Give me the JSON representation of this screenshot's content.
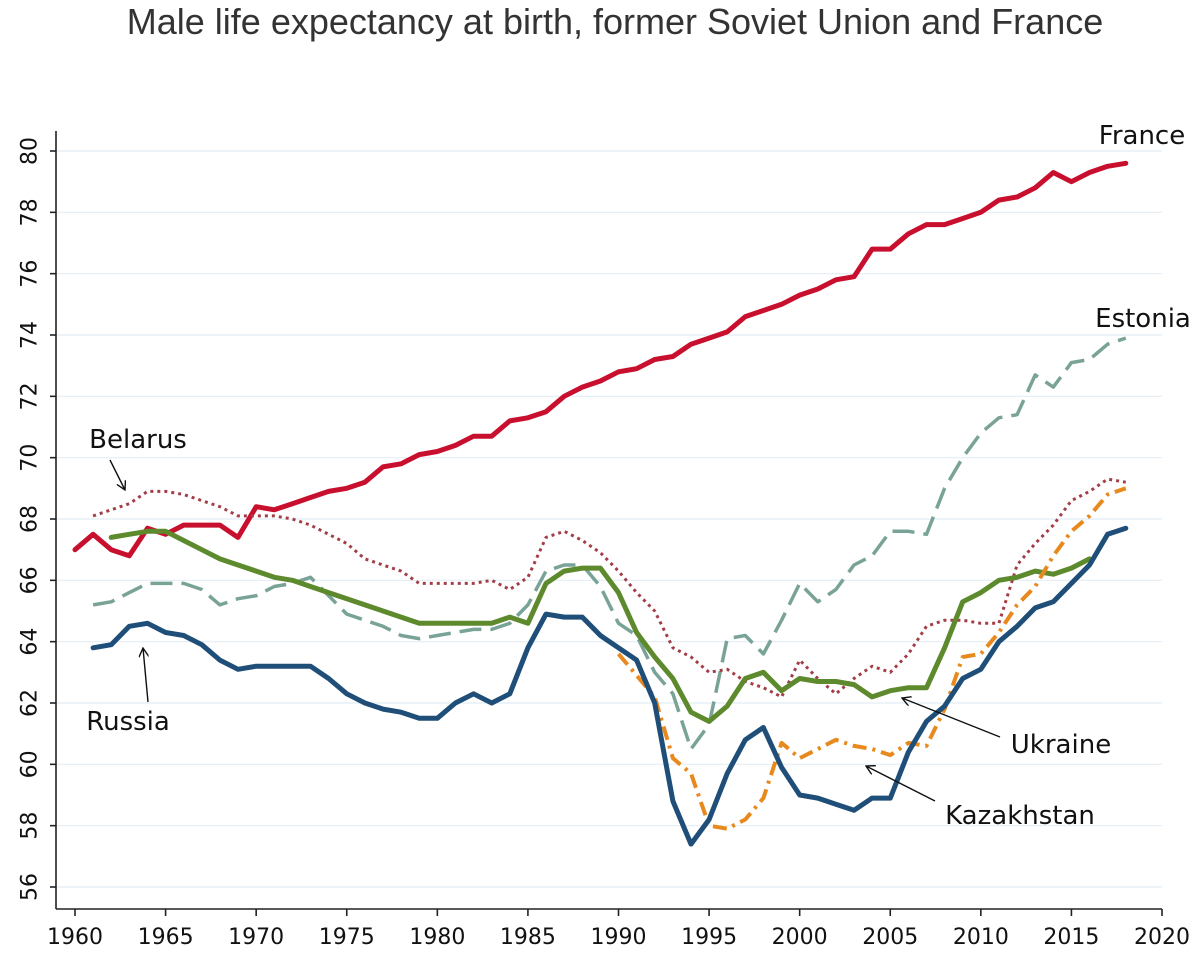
{
  "chart_data": {
    "type": "line",
    "title": "Male life expectancy at birth, former Soviet Union and France",
    "xlabel": "",
    "ylabel": "",
    "xlim": [
      1960,
      2020
    ],
    "ylim": [
      56,
      80
    ],
    "x_ticks": [
      1960,
      1965,
      1970,
      1975,
      1980,
      1985,
      1990,
      1995,
      2000,
      2005,
      2010,
      2015,
      2020
    ],
    "y_ticks": [
      56,
      58,
      60,
      62,
      64,
      66,
      68,
      70,
      72,
      74,
      76,
      78,
      80
    ],
    "grid": true,
    "legend": "direct labels",
    "series": [
      {
        "name": "France",
        "color": "#c8102e",
        "dash": "solid",
        "x": [
          1960,
          1961,
          1962,
          1963,
          1964,
          1965,
          1966,
          1967,
          1968,
          1969,
          1970,
          1971,
          1972,
          1973,
          1974,
          1975,
          1976,
          1977,
          1978,
          1979,
          1980,
          1981,
          1982,
          1983,
          1984,
          1985,
          1986,
          1987,
          1988,
          1989,
          1990,
          1991,
          1992,
          1993,
          1994,
          1995,
          1996,
          1997,
          1998,
          1999,
          2000,
          2001,
          2002,
          2003,
          2004,
          2005,
          2006,
          2007,
          2008,
          2009,
          2010,
          2011,
          2012,
          2013,
          2014,
          2015,
          2016,
          2017,
          2018
        ],
        "values": [
          67.0,
          67.5,
          67.0,
          66.8,
          67.7,
          67.5,
          67.8,
          67.8,
          67.8,
          67.4,
          68.4,
          68.3,
          68.5,
          68.7,
          68.9,
          69.0,
          69.2,
          69.7,
          69.8,
          70.1,
          70.2,
          70.4,
          70.7,
          70.7,
          71.2,
          71.3,
          71.5,
          72.0,
          72.3,
          72.5,
          72.8,
          72.9,
          73.2,
          73.3,
          73.7,
          73.9,
          74.1,
          74.6,
          74.8,
          75.0,
          75.3,
          75.5,
          75.8,
          75.9,
          76.8,
          76.8,
          77.3,
          77.6,
          77.6,
          77.8,
          78.0,
          78.4,
          78.5,
          78.8,
          79.3,
          79.0,
          79.3,
          79.5,
          79.6
        ]
      },
      {
        "name": "Estonia",
        "color": "#7aa398",
        "dash": "long-dash",
        "x": [
          1961,
          1962,
          1963,
          1964,
          1965,
          1966,
          1967,
          1968,
          1969,
          1970,
          1971,
          1972,
          1973,
          1974,
          1975,
          1976,
          1977,
          1978,
          1979,
          1980,
          1981,
          1982,
          1983,
          1984,
          1985,
          1986,
          1987,
          1988,
          1989,
          1990,
          1991,
          1992,
          1993,
          1994,
          1995,
          1996,
          1997,
          1998,
          1999,
          2000,
          2001,
          2002,
          2003,
          2004,
          2005,
          2006,
          2007,
          2008,
          2009,
          2010,
          2011,
          2012,
          2013,
          2014,
          2015,
          2016,
          2017,
          2018
        ],
        "values": [
          65.2,
          65.3,
          65.6,
          65.9,
          65.9,
          65.9,
          65.7,
          65.2,
          65.4,
          65.5,
          65.8,
          65.9,
          66.1,
          65.5,
          64.9,
          64.7,
          64.5,
          64.2,
          64.1,
          64.2,
          64.3,
          64.4,
          64.4,
          64.6,
          65.2,
          66.3,
          66.5,
          66.5,
          65.8,
          64.6,
          64.2,
          63.0,
          62.3,
          60.5,
          61.3,
          64.1,
          64.2,
          63.6,
          64.7,
          65.9,
          65.3,
          65.7,
          66.5,
          66.8,
          67.6,
          67.6,
          67.5,
          69.0,
          70.0,
          70.8,
          71.3,
          71.4,
          72.7,
          72.3,
          73.1,
          73.2,
          73.7,
          73.9
        ]
      },
      {
        "name": "Belarus",
        "color": "#a33e48",
        "dash": "dotted",
        "x": [
          1961,
          1962,
          1963,
          1964,
          1965,
          1966,
          1967,
          1968,
          1969,
          1970,
          1971,
          1972,
          1973,
          1974,
          1975,
          1976,
          1977,
          1978,
          1979,
          1980,
          1981,
          1982,
          1983,
          1984,
          1985,
          1986,
          1987,
          1988,
          1989,
          1990,
          1991,
          1992,
          1993,
          1994,
          1995,
          1996,
          1997,
          1998,
          1999,
          2000,
          2001,
          2002,
          2003,
          2004,
          2005,
          2006,
          2007,
          2008,
          2009,
          2010,
          2011,
          2012,
          2013,
          2014,
          2015,
          2016,
          2017,
          2018
        ],
        "values": [
          68.1,
          68.3,
          68.5,
          68.9,
          68.9,
          68.8,
          68.6,
          68.4,
          68.1,
          68.1,
          68.1,
          68.0,
          67.8,
          67.5,
          67.2,
          66.7,
          66.5,
          66.3,
          65.9,
          65.9,
          65.9,
          65.9,
          66.0,
          65.7,
          66.1,
          67.4,
          67.6,
          67.3,
          66.9,
          66.3,
          65.6,
          65.0,
          63.8,
          63.5,
          63.0,
          63.1,
          62.7,
          62.5,
          62.2,
          63.4,
          62.8,
          62.3,
          62.8,
          63.2,
          63.0,
          63.6,
          64.5,
          64.7,
          64.7,
          64.6,
          64.6,
          66.5,
          67.2,
          67.8,
          68.6,
          68.9,
          69.3,
          69.2
        ]
      },
      {
        "name": "Ukraine",
        "color": "#5e8a2e",
        "dash": "solid",
        "x": [
          1962,
          1963,
          1964,
          1965,
          1966,
          1967,
          1968,
          1969,
          1970,
          1971,
          1972,
          1973,
          1974,
          1975,
          1976,
          1977,
          1978,
          1979,
          1980,
          1981,
          1982,
          1983,
          1984,
          1985,
          1986,
          1987,
          1988,
          1989,
          1990,
          1991,
          1992,
          1993,
          1994,
          1995,
          1996,
          1997,
          1998,
          1999,
          2000,
          2001,
          2002,
          2003,
          2004,
          2005,
          2006,
          2007,
          2008,
          2009,
          2010,
          2011,
          2012,
          2013,
          2014,
          2015,
          2016
        ],
        "values": [
          67.4,
          67.5,
          67.6,
          67.6,
          67.3,
          67.0,
          66.7,
          66.5,
          66.3,
          66.1,
          66.0,
          65.8,
          65.6,
          65.4,
          65.2,
          65.0,
          64.8,
          64.6,
          64.6,
          64.6,
          64.6,
          64.6,
          64.8,
          64.6,
          65.9,
          66.3,
          66.4,
          66.4,
          65.6,
          64.3,
          63.5,
          62.8,
          61.7,
          61.4,
          61.9,
          62.8,
          63.0,
          62.4,
          62.8,
          62.7,
          62.7,
          62.6,
          62.2,
          62.4,
          62.5,
          62.5,
          63.8,
          65.3,
          65.6,
          66.0,
          66.1,
          66.3,
          66.2,
          66.4,
          66.7
        ]
      },
      {
        "name": "Kazakhstan",
        "color": "#e8891e",
        "dash": "dash-dot",
        "x": [
          1990,
          1991,
          1992,
          1993,
          1994,
          1995,
          1996,
          1997,
          1998,
          1999,
          2000,
          2001,
          2002,
          2003,
          2004,
          2005,
          2006,
          2007,
          2008,
          2009,
          2010,
          2011,
          2012,
          2013,
          2014,
          2015,
          2016,
          2017,
          2018
        ],
        "values": [
          63.6,
          62.9,
          62.2,
          60.2,
          59.7,
          58.0,
          57.9,
          58.2,
          58.9,
          60.7,
          60.2,
          60.5,
          60.8,
          60.6,
          60.5,
          60.3,
          60.7,
          60.6,
          61.8,
          63.5,
          63.6,
          64.3,
          65.2,
          65.8,
          66.8,
          67.6,
          68.1,
          68.8,
          69.0
        ]
      },
      {
        "name": "Russia",
        "color": "#1f4e79",
        "dash": "solid",
        "x": [
          1961,
          1962,
          1963,
          1964,
          1965,
          1966,
          1967,
          1968,
          1969,
          1970,
          1971,
          1972,
          1973,
          1974,
          1975,
          1976,
          1977,
          1978,
          1979,
          1980,
          1981,
          1982,
          1983,
          1984,
          1985,
          1986,
          1987,
          1988,
          1989,
          1990,
          1991,
          1992,
          1993,
          1994,
          1995,
          1996,
          1997,
          1998,
          1999,
          2000,
          2001,
          2002,
          2003,
          2004,
          2005,
          2006,
          2007,
          2008,
          2009,
          2010,
          2011,
          2012,
          2013,
          2014,
          2015,
          2016,
          2017,
          2018
        ],
        "values": [
          63.8,
          63.9,
          64.5,
          64.6,
          64.3,
          64.2,
          63.9,
          63.4,
          63.1,
          63.2,
          63.2,
          63.2,
          63.2,
          62.8,
          62.3,
          62.0,
          61.8,
          61.7,
          61.5,
          61.5,
          62.0,
          62.3,
          62.0,
          62.3,
          63.8,
          64.9,
          64.8,
          64.8,
          64.2,
          63.8,
          63.4,
          62.0,
          58.8,
          57.4,
          58.2,
          59.7,
          60.8,
          61.2,
          59.9,
          59.0,
          58.9,
          58.7,
          58.5,
          58.9,
          58.9,
          60.4,
          61.4,
          61.9,
          62.8,
          63.1,
          64.0,
          64.5,
          65.1,
          65.3,
          65.9,
          66.5,
          67.5,
          67.7
        ]
      }
    ],
    "annotations": [
      {
        "series": "France",
        "text": "France"
      },
      {
        "series": "Estonia",
        "text": "Estonia"
      },
      {
        "series": "Belarus",
        "text": "Belarus",
        "arrow": true
      },
      {
        "series": "Russia",
        "text": "Russia",
        "arrow": true
      },
      {
        "series": "Ukraine",
        "text": "Ukraine",
        "arrow": true
      },
      {
        "series": "Kazakhstan",
        "text": "Kazakhstan",
        "arrow": true
      }
    ]
  }
}
